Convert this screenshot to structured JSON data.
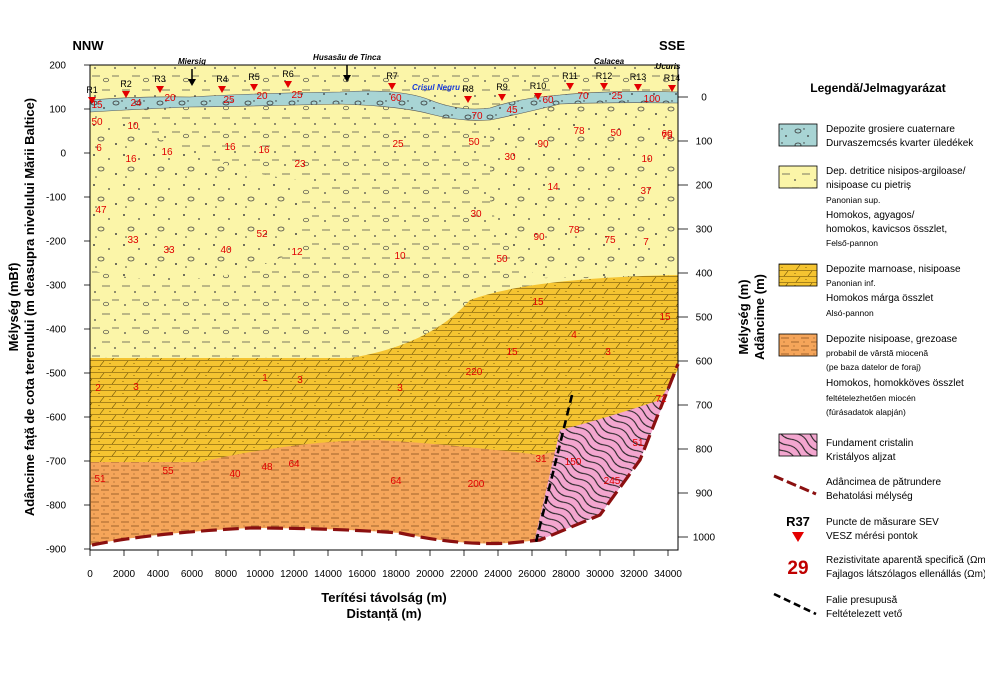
{
  "figure": {
    "left_label": "NNW",
    "right_label": "SSE",
    "x_axis": {
      "title_line1": "Terítési távolság (m)",
      "title_line2": "Distanță (m)",
      "ticks": [
        "0",
        "2000",
        "4000",
        "6000",
        "8000",
        "10000",
        "12000",
        "14000",
        "16000",
        "18000",
        "20000",
        "22000",
        "24000",
        "26000",
        "28000",
        "30000",
        "32000",
        "34000"
      ]
    },
    "y_axis_left": {
      "title_line1": "Mélység (mBf)",
      "title_line2": "Adâncime față de cota terenului (m deasupra nivelului Mării Baltice)",
      "ticks": [
        "200",
        "100",
        "0",
        "-100",
        "-200",
        "-300",
        "-400",
        "-500",
        "-600",
        "-700",
        "-800",
        "-900"
      ]
    },
    "y_axis_right": {
      "title_line1": "Mélység (m)",
      "title_line2": "Adâncime (m)",
      "ticks": [
        "0",
        "100",
        "200",
        "300",
        "400",
        "500",
        "600",
        "700",
        "800",
        "900",
        "1000"
      ]
    },
    "places": [
      {
        "id": "miersig",
        "label": "Miersig"
      },
      {
        "id": "husasau",
        "label": "Husasău de Tinca"
      },
      {
        "id": "calacea",
        "label": "Calacea"
      },
      {
        "id": "ucuris",
        "label": "Ucuriș"
      }
    ],
    "river": "Crișul Negru",
    "stations": [
      "R1",
      "R2",
      "R3",
      "R4",
      "R5",
      "R6",
      "R7",
      "R8",
      "R9",
      "R10",
      "R11",
      "R12",
      "R13",
      "R14"
    ],
    "resistivity_values": [
      "15",
      "24",
      "20",
      "25",
      "20",
      "25",
      "60",
      "70",
      "45",
      "60",
      "70",
      "25",
      "100",
      "60",
      "50",
      "10",
      "6",
      "16",
      "16",
      "16",
      "16",
      "23",
      "25",
      "50",
      "30",
      "90",
      "78",
      "50",
      "75",
      "10",
      "14",
      "37",
      "47",
      "33",
      "33",
      "40",
      "52",
      "12",
      "10",
      "30",
      "50",
      "90",
      "78",
      "75",
      "7",
      "15",
      "15",
      "4",
      "15",
      "3",
      "2",
      "3",
      "1",
      "3",
      "3",
      "220",
      "71",
      "31",
      "51",
      "55",
      "40",
      "48",
      "64",
      "64",
      "200",
      "150",
      "245",
      "51"
    ]
  },
  "legend": {
    "title": "Legendă/Jelmagyarázat",
    "items": [
      {
        "id": "quaternary",
        "line1": "Depozite grosiere cuaternare",
        "line2": "Durvaszemcsés kvarter üledékek"
      },
      {
        "id": "upper-pannonian",
        "line1": "Dep. detritice nisipos-argiloase/",
        "line2": "nisipoase cu pietriș",
        "line3": "Panonian sup.",
        "line4": "Homokos, agyagos/",
        "line5": "homokos, kavicsos összlet,",
        "line6": "Felső-pannon"
      },
      {
        "id": "lower-pannonian",
        "line1": "Depozite marnoase, nisipoase",
        "line2": "Panonian inf.",
        "line3": "Homokos márga összlet",
        "line4": "Alsó-pannon"
      },
      {
        "id": "miocene",
        "line1": "Depozite nisipoase, grezoase",
        "line2": "probabil de vârstă miocenă",
        "line3": "(pe baza datelor de foraj)",
        "line4": "Homokos, homokköves összlet",
        "line5": "feltételezhetően miocén",
        "line6": "(fúrásadatok alapján)"
      },
      {
        "id": "basement",
        "line1": "Fundament cristalin",
        "line2": "Kristályos aljzat"
      },
      {
        "id": "penetration",
        "line1": "Adâncimea de pătrundere",
        "line2": "Behatolási mélység"
      },
      {
        "id": "sev",
        "code": "R37",
        "line1": "Puncte de măsurare SEV",
        "line2": "VESZ mérési pontok"
      },
      {
        "id": "resistivity",
        "value": "29",
        "line1": "Rezistivitate aparentă specifică (Ωm)",
        "line2": "Fajlagos látszólagos ellenállás (Ωm)"
      },
      {
        "id": "fault",
        "line1": "Falie presupusă",
        "line2": "Feltételezett vető"
      }
    ]
  },
  "colors": {
    "quaternary": "#a8d4d4",
    "upper_pannonian": "#fbf5a8",
    "lower_pannonian": "#f5c431",
    "miocene": "#f5a55a",
    "basement": "#f3a6cf",
    "marker": "#e30000",
    "penetration": "#8b1010"
  }
}
